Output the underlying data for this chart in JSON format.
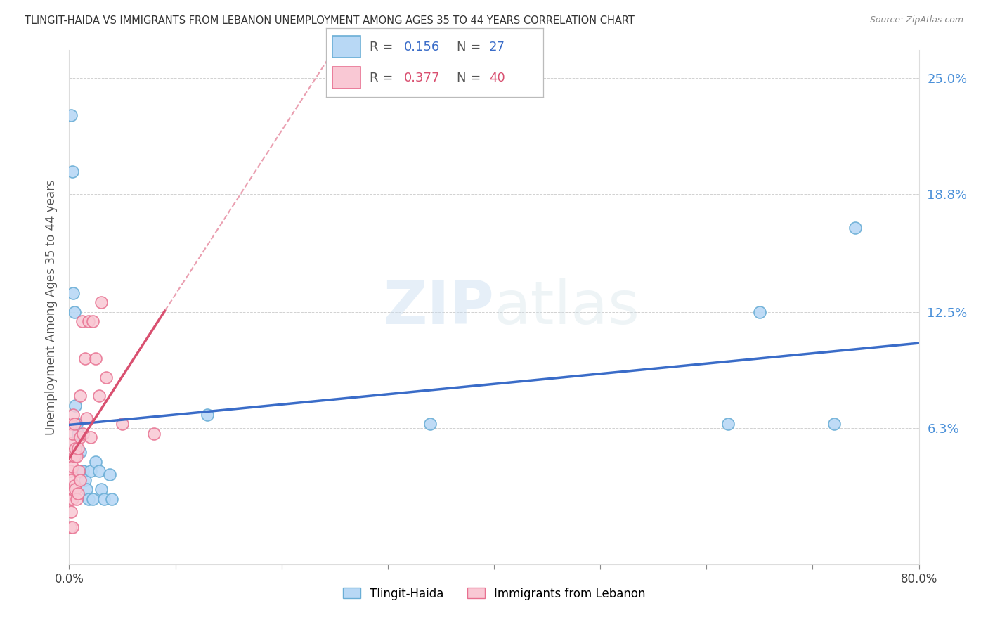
{
  "title": "TLINGIT-HAIDA VS IMMIGRANTS FROM LEBANON UNEMPLOYMENT AMONG AGES 35 TO 44 YEARS CORRELATION CHART",
  "source": "Source: ZipAtlas.com",
  "ylabel": "Unemployment Among Ages 35 to 44 years",
  "legend_label1": "Tlingit-Haida",
  "legend_label2": "Immigrants from Lebanon",
  "R1": 0.156,
  "N1": 27,
  "R2": 0.377,
  "N2": 40,
  "color1_face": "#b8d8f5",
  "color1_edge": "#6aaed6",
  "color2_face": "#f9c8d4",
  "color2_edge": "#e87090",
  "trend_color1": "#3a6cc8",
  "trend_color2": "#d95070",
  "xlim": [
    0,
    0.8
  ],
  "ylim": [
    -0.01,
    0.265
  ],
  "yticks_right": [
    0.063,
    0.125,
    0.188,
    0.25
  ],
  "ytick_right_labels": [
    "6.3%",
    "12.5%",
    "18.8%",
    "25.0%"
  ],
  "watermark": "ZIPatlas",
  "background_color": "#ffffff",
  "tlingit_x": [
    0.002,
    0.003,
    0.004,
    0.005,
    0.006,
    0.007,
    0.008,
    0.01,
    0.012,
    0.013,
    0.015,
    0.016,
    0.018,
    0.02,
    0.022,
    0.025,
    0.028,
    0.03,
    0.033,
    0.038,
    0.04,
    0.13,
    0.34,
    0.62,
    0.65,
    0.72,
    0.74
  ],
  "tlingit_y": [
    0.23,
    0.2,
    0.135,
    0.125,
    0.075,
    0.065,
    0.06,
    0.05,
    0.04,
    0.04,
    0.035,
    0.03,
    0.025,
    0.04,
    0.025,
    0.045,
    0.04,
    0.03,
    0.025,
    0.038,
    0.025,
    0.07,
    0.065,
    0.065,
    0.125,
    0.065,
    0.17
  ],
  "lebanon_x": [
    0.001,
    0.001,
    0.001,
    0.001,
    0.002,
    0.002,
    0.002,
    0.002,
    0.003,
    0.003,
    0.003,
    0.003,
    0.004,
    0.004,
    0.005,
    0.005,
    0.005,
    0.006,
    0.006,
    0.007,
    0.007,
    0.008,
    0.008,
    0.009,
    0.01,
    0.01,
    0.01,
    0.012,
    0.013,
    0.015,
    0.016,
    0.018,
    0.02,
    0.022,
    0.025,
    0.028,
    0.03,
    0.035,
    0.05,
    0.08
  ],
  "lebanon_y": [
    0.055,
    0.04,
    0.025,
    0.01,
    0.065,
    0.048,
    0.035,
    0.018,
    0.06,
    0.042,
    0.025,
    0.01,
    0.07,
    0.03,
    0.065,
    0.048,
    0.032,
    0.052,
    0.03,
    0.048,
    0.025,
    0.052,
    0.028,
    0.04,
    0.08,
    0.058,
    0.035,
    0.12,
    0.06,
    0.1,
    0.068,
    0.12,
    0.058,
    0.12,
    0.1,
    0.08,
    0.13,
    0.09,
    0.065,
    0.06
  ]
}
